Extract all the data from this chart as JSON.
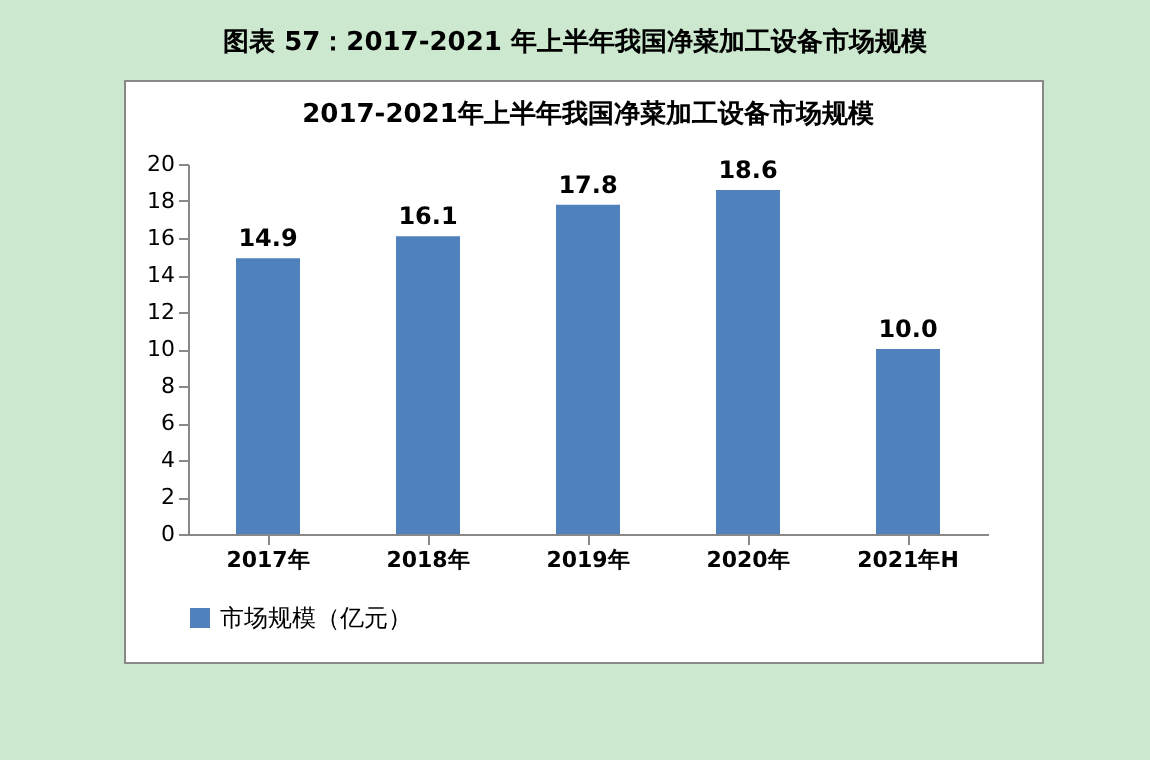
{
  "chart_data": {
    "type": "bar",
    "title": "图表 57：2017-2021 年上半年我国净菜加工设备市场规模",
    "subtitle": "2017-2021年上半年我国净菜加工设备市场规模",
    "categories": [
      "2017年",
      "2018年",
      "2019年",
      "2020年",
      "2021年H"
    ],
    "series": [
      {
        "name": "市场规模（亿元）",
        "color": "#4f81bd",
        "values": [
          14.9,
          16.1,
          17.8,
          18.6,
          10.0
        ]
      }
    ],
    "value_labels": [
      "14.9",
      "16.1",
      "17.8",
      "18.6",
      "10.0"
    ],
    "ylim": [
      0,
      20
    ],
    "yticks": [
      0,
      2,
      4,
      6,
      8,
      10,
      12,
      14,
      16,
      18,
      20
    ],
    "grid": false,
    "legend": "bottom"
  }
}
